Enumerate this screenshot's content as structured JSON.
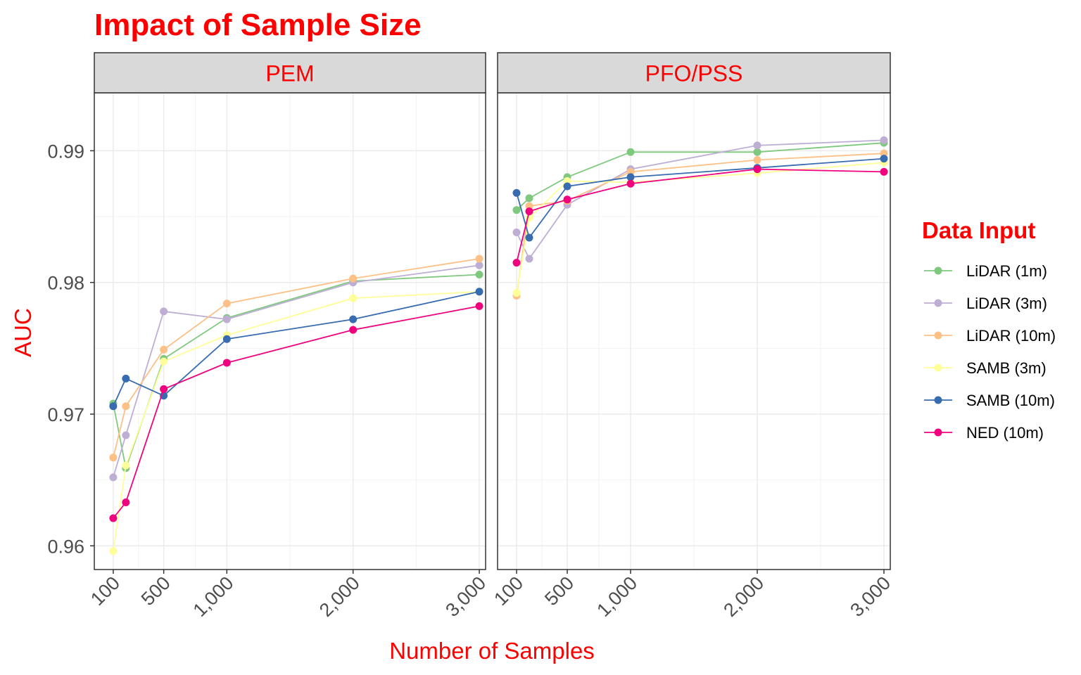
{
  "chart_data": {
    "type": "line",
    "title": "Impact of Sample Size",
    "xlabel": "Number of Samples",
    "ylabel": "AUC",
    "ylim": [
      0.9582,
      0.9944
    ],
    "xlim": [
      -50,
      3050
    ],
    "x_ticks": [
      100,
      500,
      1000,
      2000,
      3000
    ],
    "x_tick_labels": [
      "100",
      "500",
      "1,000",
      "2,000",
      "3,000"
    ],
    "y_ticks": [
      0.96,
      0.97,
      0.98,
      0.99
    ],
    "y_tick_labels": [
      "0.96",
      "0.97",
      "0.98",
      "0.99"
    ],
    "grid": true,
    "legend": {
      "title": "Data Input",
      "placement": "right"
    },
    "colors": {
      "title": "#ff0000",
      "strip_bg": "#d9d9d9",
      "tick_text": "#4d4d4d"
    },
    "series_meta": [
      {
        "name": "LiDAR (1m)",
        "color": "#7fc97f"
      },
      {
        "name": "LiDAR (3m)",
        "color": "#beaed4"
      },
      {
        "name": "LiDAR (10m)",
        "color": "#fdc086"
      },
      {
        "name": "SAMB (3m)",
        "color": "#ffff99"
      },
      {
        "name": "SAMB (10m)",
        "color": "#386cb0"
      },
      {
        "name": "NED (10m)",
        "color": "#f0027f"
      }
    ],
    "panels": [
      {
        "label": "PEM",
        "x": [
          100,
          200,
          500,
          1000,
          2000,
          3000
        ],
        "series": [
          {
            "name": "LiDAR (1m)",
            "values": [
              0.9708,
              0.9659,
              0.9742,
              0.9773,
              0.9801,
              0.9806
            ]
          },
          {
            "name": "LiDAR (3m)",
            "values": [
              0.9652,
              0.9684,
              0.9778,
              0.9772,
              0.98,
              0.9813
            ]
          },
          {
            "name": "LiDAR (10m)",
            "values": [
              0.9667,
              0.9706,
              0.9749,
              0.9784,
              0.9803,
              0.9818
            ]
          },
          {
            "name": "SAMB (3m)",
            "values": [
              0.9596,
              0.9661,
              0.974,
              0.976,
              0.9788,
              0.9793
            ]
          },
          {
            "name": "SAMB (10m)",
            "values": [
              0.9706,
              0.9727,
              0.9714,
              0.9757,
              0.9772,
              0.9793
            ]
          },
          {
            "name": "NED (10m)",
            "values": [
              0.9621,
              0.9633,
              0.9719,
              0.9739,
              0.9764,
              0.9782
            ]
          }
        ]
      },
      {
        "label": "PFO/PSS",
        "x": [
          100,
          200,
          500,
          1000,
          2000,
          3000
        ],
        "series": [
          {
            "name": "LiDAR (1m)",
            "values": [
              0.9855,
              0.9864,
              0.988,
              0.9899,
              0.9899,
              0.9906
            ]
          },
          {
            "name": "LiDAR (3m)",
            "values": [
              0.9838,
              0.9818,
              0.9859,
              0.9886,
              0.9904,
              0.9908
            ]
          },
          {
            "name": "LiDAR (10m)",
            "values": [
              0.979,
              0.9858,
              0.9862,
              0.9884,
              0.9893,
              0.9898
            ]
          },
          {
            "name": "SAMB (3m)",
            "values": [
              0.9792,
              0.9849,
              0.9877,
              0.9876,
              0.9883,
              0.9891
            ]
          },
          {
            "name": "SAMB (10m)",
            "values": [
              0.9868,
              0.9834,
              0.9873,
              0.988,
              0.9887,
              0.9894
            ]
          },
          {
            "name": "NED (10m)",
            "values": [
              0.9815,
              0.9854,
              0.9863,
              0.9875,
              0.9886,
              0.9884
            ]
          }
        ]
      }
    ]
  }
}
